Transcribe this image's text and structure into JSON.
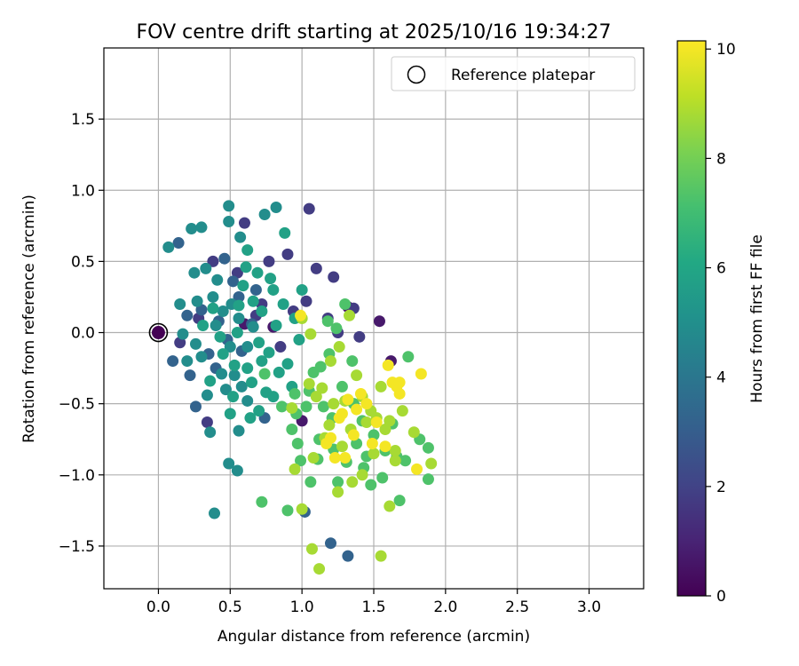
{
  "chart_data": {
    "type": "scatter",
    "title": "FOV centre drift starting at 2025/10/16 19:34:27",
    "xlabel": "Angular distance from reference (arcmin)",
    "ylabel": "Rotation from reference (arcmin)",
    "xlim": [
      -0.38,
      3.38
    ],
    "ylim": [
      -1.8,
      2.0
    ],
    "xticks": [
      0.0,
      0.5,
      1.0,
      1.5,
      2.0,
      2.5,
      3.0
    ],
    "yticks": [
      -1.5,
      -1.0,
      -0.5,
      0.0,
      0.5,
      1.0,
      1.5
    ],
    "xtick_labels": [
      "0.0",
      "0.5",
      "1.0",
      "1.5",
      "2.0",
      "2.5",
      "3.0"
    ],
    "ytick_labels": [
      "−1.5",
      "−1.0",
      "−0.5",
      "0.0",
      "0.5",
      "1.0",
      "1.5"
    ],
    "grid": true,
    "legend": {
      "position": "top-right",
      "entries": [
        "Reference platepar"
      ]
    },
    "reference_point": {
      "x": 0.0,
      "y": 0.0,
      "label": "Reference platepar"
    },
    "colorbar": {
      "label": "Hours from first FF file",
      "colormap": "viridis",
      "range": [
        0,
        10.15
      ],
      "ticks": [
        0,
        2,
        4,
        6,
        8,
        10
      ],
      "tick_labels": [
        "0",
        "2",
        "4",
        "6",
        "8",
        "10"
      ]
    },
    "point_groups": [
      {
        "name": "early",
        "hours": 0.7,
        "points": [
          [
            0.0,
            0.0
          ],
          [
            1.54,
            0.08
          ],
          [
            1.0,
            -0.62
          ],
          [
            1.62,
            -0.2
          ],
          [
            0.8,
            0.04
          ],
          [
            0.6,
            0.06
          ],
          [
            1.32,
            0.18
          ]
        ]
      },
      {
        "name": "dawn",
        "hours": 1.8,
        "points": [
          [
            1.05,
            0.87
          ],
          [
            0.77,
            0.5
          ],
          [
            0.9,
            0.55
          ],
          [
            1.1,
            0.45
          ],
          [
            1.22,
            0.39
          ],
          [
            0.6,
            0.77
          ],
          [
            1.36,
            0.17
          ],
          [
            1.03,
            0.22
          ],
          [
            0.68,
            0.12
          ],
          [
            0.28,
            0.1
          ],
          [
            0.15,
            -0.07
          ],
          [
            0.55,
            0.42
          ],
          [
            0.85,
            -0.1
          ],
          [
            1.25,
            0.0
          ],
          [
            0.38,
            0.5
          ],
          [
            0.72,
            0.2
          ],
          [
            1.18,
            0.1
          ],
          [
            0.94,
            0.15
          ],
          [
            1.4,
            -0.03
          ],
          [
            0.34,
            -0.63
          ]
        ]
      },
      {
        "name": "blue",
        "hours": 3.2,
        "points": [
          [
            0.14,
            0.63
          ],
          [
            0.1,
            -0.2
          ],
          [
            1.2,
            -1.48
          ],
          [
            1.32,
            -1.57
          ],
          [
            1.02,
            -1.26
          ],
          [
            0.42,
            0.08
          ],
          [
            0.48,
            -0.05
          ],
          [
            0.35,
            -0.15
          ],
          [
            0.68,
            0.3
          ],
          [
            0.22,
            -0.3
          ],
          [
            0.26,
            -0.52
          ],
          [
            0.58,
            -0.13
          ],
          [
            0.4,
            -0.25
          ],
          [
            0.46,
            0.52
          ],
          [
            0.3,
            0.16
          ],
          [
            0.52,
            0.36
          ],
          [
            0.65,
            0.06
          ],
          [
            0.74,
            -0.6
          ],
          [
            0.2,
            0.12
          ],
          [
            0.56,
            0.25
          ]
        ]
      },
      {
        "name": "teal",
        "hours": 4.9,
        "points": [
          [
            0.07,
            0.6
          ],
          [
            0.15,
            0.2
          ],
          [
            0.23,
            0.73
          ],
          [
            0.3,
            0.74
          ],
          [
            0.39,
            -1.27
          ],
          [
            0.49,
            0.89
          ],
          [
            0.49,
            0.78
          ],
          [
            0.57,
            0.67
          ],
          [
            0.74,
            0.83
          ],
          [
            0.82,
            0.88
          ],
          [
            0.36,
            -0.7
          ],
          [
            0.56,
            -0.69
          ],
          [
            0.49,
            -0.92
          ],
          [
            0.55,
            -0.97
          ],
          [
            0.62,
            -0.48
          ],
          [
            0.58,
            -0.38
          ],
          [
            0.33,
            0.45
          ],
          [
            0.41,
            0.37
          ],
          [
            0.25,
            0.42
          ],
          [
            0.2,
            -0.2
          ],
          [
            0.26,
            -0.08
          ],
          [
            0.3,
            -0.17
          ],
          [
            0.44,
            -0.29
          ],
          [
            0.5,
            -0.1
          ],
          [
            0.38,
            0.25
          ],
          [
            0.62,
            -0.1
          ],
          [
            0.45,
            0.15
          ],
          [
            0.53,
            -0.3
          ],
          [
            0.34,
            -0.44
          ],
          [
            0.66,
            0.04
          ],
          [
            0.27,
            0.22
          ],
          [
            0.4,
            0.05
          ],
          [
            0.47,
            -0.4
          ],
          [
            0.51,
            0.2
          ],
          [
            0.17,
            -0.01
          ],
          [
            0.56,
            0.1
          ]
        ]
      },
      {
        "name": "green",
        "hours": 5.8,
        "points": [
          [
            0.88,
            0.7
          ],
          [
            0.5,
            -0.57
          ],
          [
            0.53,
            -0.23
          ],
          [
            0.65,
            -0.35
          ],
          [
            0.72,
            0.15
          ],
          [
            0.8,
            0.3
          ],
          [
            0.87,
            0.2
          ],
          [
            0.59,
            0.33
          ],
          [
            0.69,
            0.42
          ],
          [
            0.77,
            -0.14
          ],
          [
            0.84,
            -0.28
          ],
          [
            0.7,
            -0.55
          ],
          [
            0.62,
            0.58
          ],
          [
            0.43,
            -0.03
          ],
          [
            0.55,
            0.0
          ],
          [
            0.62,
            -0.25
          ],
          [
            0.95,
            0.1
          ],
          [
            0.9,
            -0.22
          ],
          [
            0.75,
            -0.42
          ],
          [
            0.98,
            -0.05
          ],
          [
            0.38,
            0.17
          ],
          [
            0.66,
            0.22
          ],
          [
            1.0,
            0.3
          ],
          [
            0.36,
            -0.34
          ],
          [
            0.8,
            -0.45
          ],
          [
            0.93,
            -0.38
          ],
          [
            0.72,
            -0.2
          ],
          [
            0.61,
            0.46
          ],
          [
            0.45,
            -0.15
          ],
          [
            0.7,
            -0.07
          ],
          [
            0.82,
            0.05
          ],
          [
            0.56,
            0.19
          ],
          [
            0.64,
            -0.6
          ],
          [
            0.31,
            0.05
          ],
          [
            0.78,
            0.38
          ],
          [
            0.52,
            -0.45
          ]
        ]
      },
      {
        "name": "lightgreen",
        "hours": 7.3,
        "points": [
          [
            0.72,
            -1.19
          ],
          [
            0.9,
            -1.25
          ],
          [
            1.06,
            -1.05
          ],
          [
            0.99,
            -0.9
          ],
          [
            0.97,
            -0.78
          ],
          [
            1.12,
            -0.75
          ],
          [
            1.25,
            -1.05
          ],
          [
            1.31,
            -0.91
          ],
          [
            1.43,
            -0.95
          ],
          [
            1.56,
            -1.02
          ],
          [
            1.63,
            -0.64
          ],
          [
            1.74,
            -0.17
          ],
          [
            1.82,
            -0.75
          ],
          [
            1.88,
            -0.81
          ],
          [
            1.88,
            -1.03
          ],
          [
            1.72,
            -0.9
          ],
          [
            1.68,
            -1.18
          ],
          [
            1.48,
            -1.07
          ],
          [
            1.35,
            -0.2
          ],
          [
            1.3,
            0.2
          ],
          [
            1.24,
            0.03
          ],
          [
            1.18,
            0.08
          ],
          [
            1.13,
            -0.24
          ],
          [
            1.05,
            -0.41
          ],
          [
            1.03,
            -0.52
          ],
          [
            0.95,
            -0.43
          ],
          [
            1.08,
            -0.28
          ],
          [
            1.15,
            -0.52
          ],
          [
            1.21,
            -0.6
          ],
          [
            1.28,
            -0.38
          ],
          [
            1.36,
            -0.5
          ],
          [
            1.42,
            -0.62
          ],
          [
            1.5,
            -0.72
          ],
          [
            1.58,
            -0.83
          ],
          [
            1.66,
            -0.87
          ],
          [
            0.93,
            -0.68
          ],
          [
            0.96,
            -0.57
          ],
          [
            1.11,
            -0.89
          ],
          [
            1.38,
            -0.78
          ],
          [
            1.45,
            -0.87
          ],
          [
            1.22,
            -0.82
          ],
          [
            0.74,
            -0.29
          ],
          [
            0.86,
            -0.52
          ],
          [
            1.19,
            -0.15
          ]
        ]
      },
      {
        "name": "yellowgreen",
        "hours": 8.8,
        "points": [
          [
            1.07,
            -1.52
          ],
          [
            1.12,
            -1.66
          ],
          [
            1.55,
            -1.57
          ],
          [
            1.0,
            -1.24
          ],
          [
            1.08,
            -0.88
          ],
          [
            1.19,
            -0.65
          ],
          [
            1.28,
            -0.8
          ],
          [
            1.34,
            -0.68
          ],
          [
            1.45,
            -0.63
          ],
          [
            1.52,
            -0.6
          ],
          [
            1.65,
            -0.83
          ],
          [
            1.7,
            -0.55
          ],
          [
            1.65,
            -0.9
          ],
          [
            1.78,
            -0.7
          ],
          [
            1.9,
            -0.92
          ],
          [
            1.22,
            -0.5
          ],
          [
            1.3,
            -0.48
          ],
          [
            1.14,
            -0.39
          ],
          [
            1.38,
            -0.3
          ],
          [
            1.2,
            -0.2
          ],
          [
            1.26,
            -0.1
          ],
          [
            1.05,
            -0.36
          ],
          [
            1.1,
            -0.45
          ],
          [
            1.33,
            0.12
          ],
          [
            1.0,
            0.1
          ],
          [
            1.06,
            -0.01
          ],
          [
            0.93,
            -0.53
          ],
          [
            1.48,
            -0.55
          ],
          [
            1.55,
            -0.38
          ],
          [
            1.42,
            -0.45
          ],
          [
            1.61,
            -1.22
          ],
          [
            1.5,
            -0.85
          ],
          [
            1.16,
            -0.74
          ],
          [
            1.25,
            -1.12
          ],
          [
            1.35,
            -1.05
          ],
          [
            1.42,
            -1.0
          ],
          [
            0.95,
            -0.96
          ],
          [
            1.58,
            -0.68
          ],
          [
            1.61,
            -0.62
          ]
        ]
      },
      {
        "name": "yellow",
        "hours": 10.0,
        "points": [
          [
            0.99,
            0.12
          ],
          [
            1.6,
            -0.23
          ],
          [
            1.63,
            -0.35
          ],
          [
            1.66,
            -0.38
          ],
          [
            1.68,
            -0.43
          ],
          [
            1.83,
            -0.29
          ],
          [
            1.8,
            -0.96
          ],
          [
            1.41,
            -0.43
          ],
          [
            1.38,
            -0.54
          ],
          [
            1.32,
            -0.47
          ],
          [
            1.26,
            -0.6
          ],
          [
            1.2,
            -0.74
          ],
          [
            1.3,
            -0.88
          ],
          [
            1.23,
            -0.88
          ],
          [
            1.52,
            -0.63
          ],
          [
            1.45,
            -0.5
          ],
          [
            1.36,
            -0.72
          ],
          [
            1.49,
            -0.78
          ],
          [
            1.17,
            -0.78
          ],
          [
            1.68,
            -0.35
          ],
          [
            1.28,
            -0.57
          ],
          [
            1.58,
            -0.8
          ]
        ]
      }
    ]
  }
}
